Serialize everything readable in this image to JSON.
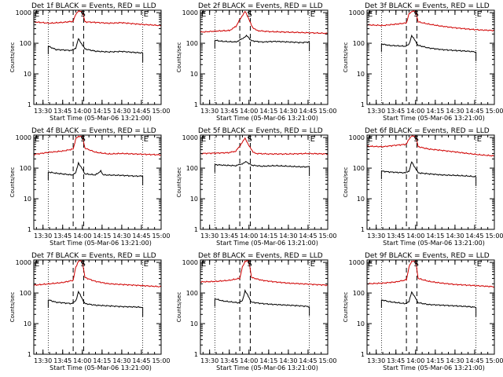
{
  "colors": {
    "events": "#000000",
    "lld": "#d00000",
    "axes": "#000000"
  },
  "chart_data": [
    {
      "type": "line",
      "title": "Det 1f BLACK = Events, RED = LLD",
      "xlabel": "Start Time (05-Mar-06 13:21:00)",
      "ylabel": "Counts/sec",
      "xlim": [
        "13:23",
        "15:00"
      ],
      "ylim": [
        1,
        1200
      ],
      "yscale": "log",
      "yticklabels": [
        "1",
        "10",
        "100",
        "1000"
      ],
      "xticklabels": [
        "13:30",
        "13:45",
        "14:00",
        "14:15",
        "14:30",
        "14:45",
        "15:00"
      ],
      "markers": [
        {
          "label": "E",
          "time": "13:23"
        },
        {
          "label": "S",
          "time": "13:58"
        },
        {
          "label": "E",
          "time": "14:46"
        }
      ],
      "dotted_lines": [
        "13:34",
        "14:46"
      ],
      "dashed_lines": [
        "13:53",
        "14:01"
      ],
      "series": [
        {
          "name": "Events",
          "color": "#000000",
          "x": [
            "13:34",
            "13:40",
            "13:52",
            "13:55",
            "13:57",
            "14:02",
            "14:10",
            "14:20",
            "14:30",
            "14:40",
            "14:46"
          ],
          "y": [
            80,
            62,
            58,
            70,
            140,
            65,
            55,
            52,
            54,
            50,
            48
          ]
        },
        {
          "name": "LLD",
          "color": "#d00000",
          "x": [
            "13:23",
            "13:35",
            "13:45",
            "13:53",
            "13:55",
            "13:57",
            "14:00",
            "14:02",
            "14:10",
            "14:20",
            "14:30",
            "14:40",
            "14:50",
            "15:00"
          ],
          "y": [
            500,
            450,
            480,
            520,
            900,
            1100,
            1100,
            500,
            480,
            450,
            470,
            430,
            400,
            380
          ]
        }
      ]
    },
    {
      "type": "line",
      "title": "Det 2f BLACK = Events, RED = LLD",
      "xlabel": "Start Time (05-Mar-06 13:21:00)",
      "ylabel": "Counts/sec",
      "xlim": [
        "13:23",
        "15:00"
      ],
      "ylim": [
        1,
        1200
      ],
      "yscale": "log",
      "yticklabels": [
        "1",
        "10",
        "100",
        "1000"
      ],
      "xticklabels": [
        "13:30",
        "13:45",
        "14:00",
        "14:15",
        "14:30",
        "14:45",
        "15:00"
      ],
      "markers": [
        {
          "label": "E",
          "time": "13:23"
        },
        {
          "label": "S",
          "time": "13:58"
        },
        {
          "label": "E",
          "time": "14:46"
        }
      ],
      "dotted_lines": [
        "13:34",
        "14:46"
      ],
      "dashed_lines": [
        "13:53",
        "14:01"
      ],
      "series": [
        {
          "name": "Events",
          "color": "#000000",
          "x": [
            "13:34",
            "13:40",
            "13:50",
            "13:55",
            "13:58",
            "14:02",
            "14:10",
            "14:20",
            "14:30",
            "14:40",
            "14:46"
          ],
          "y": [
            125,
            115,
            110,
            140,
            180,
            120,
            110,
            115,
            110,
            105,
            110
          ]
        },
        {
          "name": "LLD",
          "color": "#d00000",
          "x": [
            "13:23",
            "13:35",
            "13:45",
            "13:50",
            "13:54",
            "13:57",
            "14:00",
            "14:03",
            "14:06",
            "14:15",
            "14:30",
            "14:45",
            "15:00"
          ],
          "y": [
            230,
            250,
            260,
            350,
            700,
            1100,
            600,
            320,
            260,
            240,
            230,
            220,
            210
          ]
        }
      ]
    },
    {
      "type": "line",
      "title": "Det 3f BLACK = Events, RED = LLD",
      "xlabel": "Start Time (05-Mar-06 13:21:00)",
      "ylabel": "Counts/sec",
      "xlim": [
        "13:23",
        "15:00"
      ],
      "ylim": [
        1,
        1200
      ],
      "yscale": "log",
      "yticklabels": [
        "1",
        "10",
        "100",
        "1000"
      ],
      "xticklabels": [
        "13:30",
        "13:45",
        "14:00",
        "14:15",
        "14:30",
        "14:45",
        "15:00"
      ],
      "markers": [
        {
          "label": "E",
          "time": "13:23"
        },
        {
          "label": "S",
          "time": "13:58"
        },
        {
          "label": "E",
          "time": "14:46"
        }
      ],
      "dotted_lines": [
        "13:34",
        "14:46"
      ],
      "dashed_lines": [
        "13:53",
        "14:01"
      ],
      "series": [
        {
          "name": "Events",
          "color": "#000000",
          "x": [
            "13:34",
            "13:40",
            "13:52",
            "13:55",
            "13:57",
            "14:02",
            "14:10",
            "14:20",
            "14:30",
            "14:40",
            "14:46"
          ],
          "y": [
            95,
            85,
            80,
            90,
            180,
            85,
            70,
            62,
            58,
            55,
            52
          ]
        },
        {
          "name": "LLD",
          "color": "#d00000",
          "x": [
            "13:23",
            "13:35",
            "13:45",
            "13:53",
            "13:55",
            "13:57",
            "14:00",
            "14:02",
            "14:10",
            "14:20",
            "14:30",
            "14:40",
            "14:50",
            "15:00"
          ],
          "y": [
            400,
            380,
            420,
            460,
            900,
            1100,
            1100,
            500,
            420,
            360,
            320,
            290,
            270,
            260
          ]
        }
      ]
    },
    {
      "type": "line",
      "title": "Det 4f BLACK = Events, RED = LLD",
      "xlabel": "Start Time (05-Mar-06 13:21:00)",
      "ylabel": "Counts/sec",
      "xlim": [
        "13:23",
        "15:00"
      ],
      "ylim": [
        1,
        1200
      ],
      "yscale": "log",
      "yticklabels": [
        "1",
        "10",
        "100",
        "1000"
      ],
      "xticklabels": [
        "13:30",
        "13:45",
        "14:00",
        "14:15",
        "14:30",
        "14:45",
        "15:00"
      ],
      "markers": [
        {
          "label": "E",
          "time": "13:23"
        },
        {
          "label": "S",
          "time": "13:58"
        },
        {
          "label": "E",
          "time": "14:46"
        }
      ],
      "dotted_lines": [
        "13:34",
        "14:46"
      ],
      "dashed_lines": [
        "13:53",
        "14:01"
      ],
      "series": [
        {
          "name": "Events",
          "color": "#000000",
          "x": [
            "13:34",
            "13:40",
            "13:52",
            "13:55",
            "13:57",
            "14:02",
            "14:10",
            "14:14",
            "14:16",
            "14:30",
            "14:40",
            "14:46"
          ],
          "y": [
            75,
            68,
            60,
            70,
            150,
            65,
            60,
            80,
            60,
            58,
            55,
            55
          ]
        },
        {
          "name": "LLD",
          "color": "#d00000",
          "x": [
            "13:23",
            "13:35",
            "13:45",
            "13:53",
            "13:55",
            "13:57",
            "14:00",
            "14:02",
            "14:10",
            "14:20",
            "14:30",
            "14:40",
            "14:50",
            "15:00"
          ],
          "y": [
            280,
            330,
            360,
            420,
            900,
            1100,
            1100,
            450,
            330,
            290,
            300,
            290,
            280,
            270
          ]
        }
      ]
    },
    {
      "type": "line",
      "title": "Det 5f BLACK = Events, RED = LLD",
      "xlabel": "Start Time (05-Mar-06 13:21:00)",
      "ylabel": "Counts/sec",
      "xlim": [
        "13:23",
        "15:00"
      ],
      "ylim": [
        1,
        1200
      ],
      "yscale": "log",
      "yticklabels": [
        "1",
        "10",
        "100",
        "1000"
      ],
      "xticklabels": [
        "13:30",
        "13:45",
        "14:00",
        "14:15",
        "14:30",
        "14:45",
        "15:00"
      ],
      "markers": [
        {
          "label": "E",
          "time": "13:23"
        },
        {
          "label": "S",
          "time": "13:58"
        },
        {
          "label": "E",
          "time": "14:46"
        }
      ],
      "dotted_lines": [
        "13:34",
        "14:46"
      ],
      "dashed_lines": [
        "13:53",
        "14:01"
      ],
      "series": [
        {
          "name": "Events",
          "color": "#000000",
          "x": [
            "13:34",
            "13:40",
            "13:50",
            "13:55",
            "13:58",
            "14:02",
            "14:10",
            "14:20",
            "14:30",
            "14:40",
            "14:46"
          ],
          "y": [
            130,
            125,
            120,
            140,
            160,
            125,
            115,
            120,
            115,
            110,
            110
          ]
        },
        {
          "name": "LLD",
          "color": "#d00000",
          "x": [
            "13:23",
            "13:35",
            "13:45",
            "13:50",
            "13:54",
            "13:57",
            "14:00",
            "14:03",
            "14:06",
            "14:15",
            "14:30",
            "14:45",
            "15:00"
          ],
          "y": [
            300,
            310,
            320,
            360,
            600,
            950,
            550,
            330,
            300,
            290,
            290,
            300,
            290
          ]
        }
      ]
    },
    {
      "type": "line",
      "title": "Det 6f BLACK = Events, RED = LLD",
      "xlabel": "Start Time (05-Mar-06 13:21:00)",
      "ylabel": "Counts/sec",
      "xlim": [
        "13:23",
        "15:00"
      ],
      "ylim": [
        1,
        1200
      ],
      "yscale": "log",
      "yticklabels": [
        "1",
        "10",
        "100",
        "1000"
      ],
      "xticklabels": [
        "13:30",
        "13:45",
        "14:00",
        "14:15",
        "14:30",
        "14:45",
        "15:00"
      ],
      "markers": [
        {
          "label": "E",
          "time": "13:23"
        },
        {
          "label": "S",
          "time": "13:58"
        },
        {
          "label": "E",
          "time": "14:46"
        }
      ],
      "dotted_lines": [
        "13:34",
        "14:46"
      ],
      "dashed_lines": [
        "13:53",
        "14:01"
      ],
      "series": [
        {
          "name": "Events",
          "color": "#000000",
          "x": [
            "13:34",
            "13:40",
            "13:52",
            "13:55",
            "13:57",
            "14:02",
            "14:10",
            "14:20",
            "14:30",
            "14:40",
            "14:46"
          ],
          "y": [
            80,
            75,
            70,
            80,
            160,
            70,
            65,
            60,
            58,
            55,
            52
          ]
        },
        {
          "name": "LLD",
          "color": "#d00000",
          "x": [
            "13:23",
            "13:35",
            "13:45",
            "13:53",
            "13:55",
            "13:57",
            "14:00",
            "14:02",
            "14:10",
            "14:20",
            "14:30",
            "14:40",
            "14:50",
            "15:00"
          ],
          "y": [
            520,
            500,
            560,
            600,
            900,
            1100,
            1100,
            500,
            420,
            380,
            340,
            300,
            270,
            250
          ]
        }
      ]
    },
    {
      "type": "line",
      "title": "Det 7f BLACK = Events, RED = LLD",
      "xlabel": "Start Time (05-Mar-06 13:21:00)",
      "ylabel": "Counts/sec",
      "xlim": [
        "13:23",
        "15:00"
      ],
      "ylim": [
        1,
        1200
      ],
      "yscale": "log",
      "yticklabels": [
        "1",
        "10",
        "100",
        "1000"
      ],
      "xticklabels": [
        "13:30",
        "13:45",
        "14:00",
        "14:15",
        "14:30",
        "14:45",
        "15:00"
      ],
      "markers": [
        {
          "label": "E",
          "time": "13:23"
        },
        {
          "label": "S",
          "time": "13:58"
        },
        {
          "label": "E",
          "time": "14:46"
        }
      ],
      "dotted_lines": [
        "13:34",
        "14:46"
      ],
      "dashed_lines": [
        "13:53",
        "14:01"
      ],
      "series": [
        {
          "name": "Events",
          "color": "#000000",
          "x": [
            "13:34",
            "13:40",
            "13:52",
            "13:55",
            "13:57",
            "14:02",
            "14:10",
            "14:20",
            "14:30",
            "14:40",
            "14:46"
          ],
          "y": [
            60,
            50,
            45,
            55,
            110,
            45,
            40,
            38,
            36,
            35,
            34
          ]
        },
        {
          "name": "LLD",
          "color": "#d00000",
          "x": [
            "13:23",
            "13:35",
            "13:45",
            "13:53",
            "13:55",
            "13:57",
            "14:00",
            "14:02",
            "14:10",
            "14:20",
            "14:30",
            "14:40",
            "14:50",
            "15:00"
          ],
          "y": [
            180,
            200,
            220,
            260,
            700,
            1100,
            1100,
            320,
            240,
            200,
            190,
            180,
            170,
            160
          ]
        }
      ]
    },
    {
      "type": "line",
      "title": "Det 8f BLACK = Events, RED = LLD",
      "xlabel": "Start Time (05-Mar-06 13:21:00)",
      "ylabel": "Counts/sec",
      "xlim": [
        "13:23",
        "15:00"
      ],
      "ylim": [
        1,
        1200
      ],
      "yscale": "log",
      "yticklabels": [
        "1",
        "10",
        "100",
        "1000"
      ],
      "xticklabels": [
        "13:30",
        "13:45",
        "14:00",
        "14:15",
        "14:30",
        "14:45",
        "15:00"
      ],
      "markers": [
        {
          "label": "E",
          "time": "13:23"
        },
        {
          "label": "S",
          "time": "13:58"
        },
        {
          "label": "E",
          "time": "14:46"
        }
      ],
      "dotted_lines": [
        "13:34",
        "14:46"
      ],
      "dashed_lines": [
        "13:53",
        "14:01"
      ],
      "series": [
        {
          "name": "Events",
          "color": "#000000",
          "x": [
            "13:34",
            "13:40",
            "13:52",
            "13:55",
            "13:57",
            "14:02",
            "14:10",
            "14:20",
            "14:30",
            "14:40",
            "14:46"
          ],
          "y": [
            65,
            55,
            48,
            55,
            120,
            50,
            45,
            42,
            40,
            38,
            36
          ]
        },
        {
          "name": "LLD",
          "color": "#d00000",
          "x": [
            "13:23",
            "13:35",
            "13:45",
            "13:53",
            "13:55",
            "13:57",
            "14:00",
            "14:02",
            "14:10",
            "14:20",
            "14:30",
            "14:40",
            "14:50",
            "15:00"
          ],
          "y": [
            230,
            240,
            260,
            300,
            700,
            1100,
            1100,
            320,
            260,
            230,
            210,
            200,
            190,
            180
          ]
        }
      ]
    },
    {
      "type": "line",
      "title": "Det 9f BLACK = Events, RED = LLD",
      "xlabel": "Start Time (05-Mar-06 13:21:00)",
      "ylabel": "Counts/sec",
      "xlim": [
        "13:23",
        "15:00"
      ],
      "ylim": [
        1,
        1200
      ],
      "yscale": "log",
      "yticklabels": [
        "1",
        "10",
        "100",
        "1000"
      ],
      "xticklabels": [
        "13:30",
        "13:45",
        "14:00",
        "14:15",
        "14:30",
        "14:45",
        "15:00"
      ],
      "markers": [
        {
          "label": "E",
          "time": "13:23"
        },
        {
          "label": "S",
          "time": "13:58"
        },
        {
          "label": "E",
          "time": "14:46"
        }
      ],
      "dotted_lines": [
        "13:34",
        "14:46"
      ],
      "dashed_lines": [
        "13:53",
        "14:01"
      ],
      "series": [
        {
          "name": "Events",
          "color": "#000000",
          "x": [
            "13:34",
            "13:40",
            "13:52",
            "13:55",
            "13:57",
            "14:02",
            "14:10",
            "14:20",
            "14:30",
            "14:40",
            "14:46"
          ],
          "y": [
            60,
            52,
            45,
            52,
            110,
            48,
            42,
            40,
            38,
            36,
            34
          ]
        },
        {
          "name": "LLD",
          "color": "#d00000",
          "x": [
            "13:23",
            "13:35",
            "13:45",
            "13:53",
            "13:55",
            "13:57",
            "14:00",
            "14:02",
            "14:10",
            "14:20",
            "14:30",
            "14:40",
            "14:50",
            "15:00"
          ],
          "y": [
            200,
            210,
            230,
            270,
            700,
            1100,
            1100,
            300,
            240,
            210,
            190,
            180,
            170,
            160
          ]
        }
      ]
    }
  ]
}
